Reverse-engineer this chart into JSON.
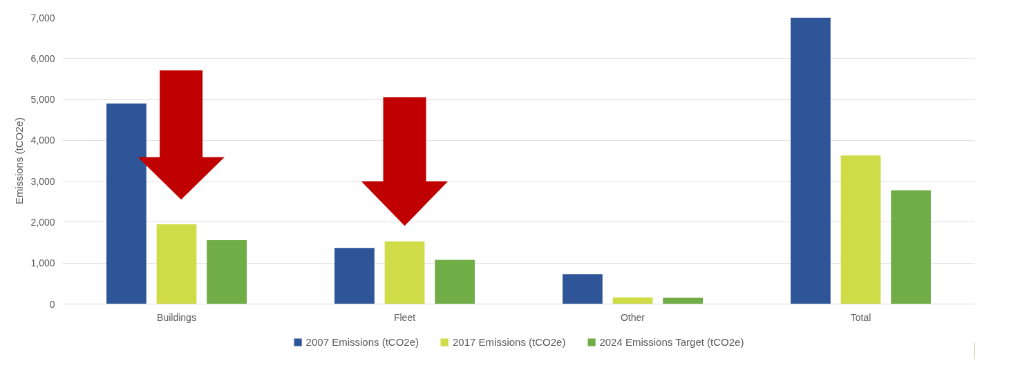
{
  "chart_data": {
    "type": "bar",
    "ylabel": "Emissions (tCO2e)",
    "categories": [
      "Buildings",
      "Fleet",
      "Other",
      "Total"
    ],
    "series": [
      {
        "name": "2007 Emissions (tCO2e)",
        "color": "#2e5597",
        "values": [
          4900,
          1370,
          730,
          7000
        ]
      },
      {
        "name": "2017 Emissions (tCO2e)",
        "color": "#cfdc48",
        "values": [
          1950,
          1530,
          160,
          3630
        ]
      },
      {
        "name": "2024 Emissions Target (tCO2e)",
        "color": "#70ad47",
        "values": [
          1560,
          1080,
          150,
          2780
        ]
      }
    ],
    "ylim": [
      0,
      7000
    ],
    "yticks": [
      {
        "value": 0,
        "label": "0"
      },
      {
        "value": 1000,
        "label": "1,000"
      },
      {
        "value": 2000,
        "label": "2,000"
      },
      {
        "value": 3000,
        "label": "3,000"
      },
      {
        "value": 4000,
        "label": "4,000"
      },
      {
        "value": 5000,
        "label": "5,000"
      },
      {
        "value": 6000,
        "label": "6,000"
      },
      {
        "value": 7000,
        "label": "7,000"
      }
    ],
    "grid": "y",
    "legend": "bottom"
  }
}
